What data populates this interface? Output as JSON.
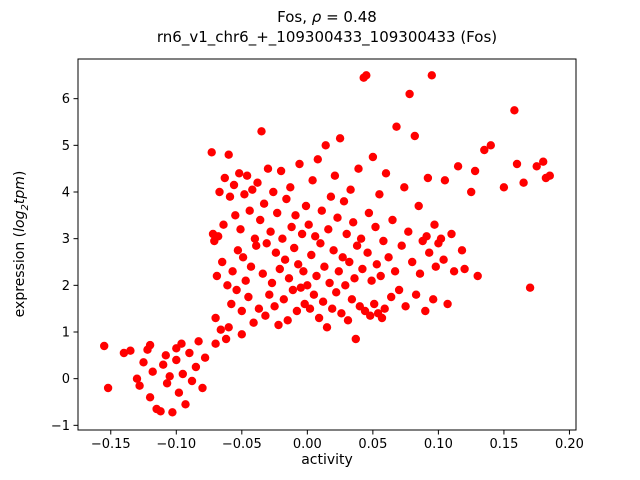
{
  "title": {
    "prefix": "Fos, ",
    "rho": "ρ",
    "suffix": " = 0.48"
  },
  "subtitle": "rn6_v1_chr6_+_109300433_109300433 (Fos)",
  "xlabel": "activity",
  "ylabel": {
    "prefix": "expression (",
    "math": "log",
    "sub": "2",
    "word": "tpm",
    "suffix": ")"
  },
  "chart_data": {
    "type": "scatter",
    "title": "Fos, ρ = 0.48",
    "subtitle": "rn6_v1_chr6_+_109300433_109300433 (Fos)",
    "xlabel": "activity",
    "ylabel": "expression (log2tpm)",
    "marker_color": "#ff0000",
    "marker_radius": 4.2,
    "xlim": [
      -0.175,
      0.205
    ],
    "ylim": [
      -1.1,
      6.85
    ],
    "grid": false,
    "x_ticks": [
      {
        "v": -0.15,
        "label": "−0.15"
      },
      {
        "v": -0.1,
        "label": "−0.10"
      },
      {
        "v": -0.05,
        "label": "−0.05"
      },
      {
        "v": 0.0,
        "label": "0.00"
      },
      {
        "v": 0.05,
        "label": "0.05"
      },
      {
        "v": 0.1,
        "label": "0.10"
      },
      {
        "v": 0.15,
        "label": "0.15"
      },
      {
        "v": 0.2,
        "label": "0.20"
      }
    ],
    "y_ticks": [
      {
        "v": -1,
        "label": "−1"
      },
      {
        "v": 0,
        "label": "0"
      },
      {
        "v": 1,
        "label": "1"
      },
      {
        "v": 2,
        "label": "2"
      },
      {
        "v": 3,
        "label": "3"
      },
      {
        "v": 4,
        "label": "4"
      },
      {
        "v": 5,
        "label": "5"
      },
      {
        "v": 6,
        "label": "6"
      }
    ],
    "points": [
      [
        -0.155,
        0.7
      ],
      [
        -0.152,
        -0.2
      ],
      [
        -0.14,
        0.55
      ],
      [
        -0.135,
        0.6
      ],
      [
        -0.13,
        0.0
      ],
      [
        -0.128,
        -0.15
      ],
      [
        -0.125,
        0.35
      ],
      [
        -0.122,
        0.62
      ],
      [
        -0.12,
        -0.4
      ],
      [
        -0.12,
        0.72
      ],
      [
        -0.118,
        0.15
      ],
      [
        -0.115,
        -0.65
      ],
      [
        -0.112,
        -0.7
      ],
      [
        -0.11,
        0.3
      ],
      [
        -0.108,
        0.5
      ],
      [
        -0.107,
        -0.1
      ],
      [
        -0.105,
        0.05
      ],
      [
        -0.103,
        -0.72
      ],
      [
        -0.1,
        0.4
      ],
      [
        -0.1,
        0.65
      ],
      [
        -0.098,
        -0.3
      ],
      [
        -0.096,
        0.75
      ],
      [
        -0.095,
        0.1
      ],
      [
        -0.093,
        -0.55
      ],
      [
        -0.09,
        0.55
      ],
      [
        -0.088,
        -0.05
      ],
      [
        -0.085,
        0.25
      ],
      [
        -0.083,
        0.8
      ],
      [
        -0.08,
        -0.2
      ],
      [
        -0.078,
        0.45
      ],
      [
        -0.073,
        4.85
      ],
      [
        -0.072,
        3.1
      ],
      [
        -0.071,
        2.95
      ],
      [
        -0.07,
        1.3
      ],
      [
        -0.07,
        0.75
      ],
      [
        -0.069,
        2.2
      ],
      [
        -0.068,
        3.05
      ],
      [
        -0.067,
        4.0
      ],
      [
        -0.066,
        1.05
      ],
      [
        -0.065,
        2.5
      ],
      [
        -0.064,
        3.3
      ],
      [
        -0.063,
        4.3
      ],
      [
        -0.062,
        0.85
      ],
      [
        -0.061,
        2.0
      ],
      [
        -0.06,
        4.8
      ],
      [
        -0.06,
        1.1
      ],
      [
        -0.059,
        3.9
      ],
      [
        -0.058,
        1.6
      ],
      [
        -0.057,
        2.3
      ],
      [
        -0.056,
        4.15
      ],
      [
        -0.055,
        3.5
      ],
      [
        -0.054,
        1.9
      ],
      [
        -0.053,
        2.75
      ],
      [
        -0.052,
        4.4
      ],
      [
        -0.051,
        3.2
      ],
      [
        -0.05,
        1.45
      ],
      [
        -0.05,
        0.95
      ],
      [
        -0.049,
        2.6
      ],
      [
        -0.048,
        3.95
      ],
      [
        -0.047,
        2.1
      ],
      [
        -0.046,
        4.35
      ],
      [
        -0.045,
        1.75
      ],
      [
        -0.044,
        3.6
      ],
      [
        -0.043,
        2.4
      ],
      [
        -0.042,
        4.05
      ],
      [
        -0.041,
        1.2
      ],
      [
        -0.04,
        3.0
      ],
      [
        -0.039,
        2.85
      ],
      [
        -0.038,
        4.2
      ],
      [
        -0.037,
        1.5
      ],
      [
        -0.036,
        3.4
      ],
      [
        -0.035,
        5.3
      ],
      [
        -0.034,
        2.25
      ],
      [
        -0.033,
        3.75
      ],
      [
        -0.032,
        1.35
      ],
      [
        -0.031,
        2.9
      ],
      [
        -0.03,
        4.5
      ],
      [
        -0.029,
        1.8
      ],
      [
        -0.028,
        3.15
      ],
      [
        -0.027,
        2.05
      ],
      [
        -0.026,
        4.0
      ],
      [
        -0.025,
        1.55
      ],
      [
        -0.024,
        2.7
      ],
      [
        -0.023,
        3.55
      ],
      [
        -0.022,
        1.15
      ],
      [
        -0.021,
        2.35
      ],
      [
        -0.02,
        4.45
      ],
      [
        -0.019,
        3.0
      ],
      [
        -0.018,
        1.7
      ],
      [
        -0.017,
        2.55
      ],
      [
        -0.016,
        3.85
      ],
      [
        -0.015,
        1.25
      ],
      [
        -0.014,
        2.15
      ],
      [
        -0.013,
        4.1
      ],
      [
        -0.012,
        3.25
      ],
      [
        -0.011,
        1.9
      ],
      [
        -0.01,
        2.8
      ],
      [
        -0.009,
        3.5
      ],
      [
        -0.008,
        1.45
      ],
      [
        -0.007,
        2.45
      ],
      [
        -0.006,
        4.6
      ],
      [
        -0.005,
        1.95
      ],
      [
        -0.004,
        3.1
      ],
      [
        -0.003,
        2.3
      ],
      [
        -0.002,
        1.6
      ],
      [
        -0.001,
        3.7
      ],
      [
        0.0,
        2.0
      ],
      [
        0.001,
        3.3
      ],
      [
        0.002,
        1.5
      ],
      [
        0.003,
        2.65
      ],
      [
        0.004,
        4.25
      ],
      [
        0.005,
        1.8
      ],
      [
        0.006,
        3.05
      ],
      [
        0.007,
        2.2
      ],
      [
        0.008,
        4.7
      ],
      [
        0.009,
        1.3
      ],
      [
        0.01,
        2.9
      ],
      [
        0.011,
        3.6
      ],
      [
        0.012,
        1.65
      ],
      [
        0.013,
        2.4
      ],
      [
        0.014,
        5.0
      ],
      [
        0.015,
        1.1
      ],
      [
        0.016,
        3.2
      ],
      [
        0.017,
        2.05
      ],
      [
        0.018,
        3.9
      ],
      [
        0.019,
        1.5
      ],
      [
        0.02,
        2.75
      ],
      [
        0.021,
        4.35
      ],
      [
        0.022,
        1.85
      ],
      [
        0.023,
        3.45
      ],
      [
        0.024,
        2.3
      ],
      [
        0.025,
        5.15
      ],
      [
        0.026,
        1.4
      ],
      [
        0.027,
        2.6
      ],
      [
        0.028,
        3.8
      ],
      [
        0.029,
        2.0
      ],
      [
        0.03,
        3.1
      ],
      [
        0.031,
        1.25
      ],
      [
        0.032,
        2.5
      ],
      [
        0.033,
        4.05
      ],
      [
        0.034,
        1.7
      ],
      [
        0.035,
        3.35
      ],
      [
        0.036,
        2.15
      ],
      [
        0.037,
        0.85
      ],
      [
        0.038,
        2.85
      ],
      [
        0.039,
        4.5
      ],
      [
        0.04,
        1.55
      ],
      [
        0.041,
        3.0
      ],
      [
        0.042,
        2.35
      ],
      [
        0.043,
        6.45
      ],
      [
        0.044,
        1.45
      ],
      [
        0.045,
        6.5
      ],
      [
        0.046,
        2.7
      ],
      [
        0.047,
        3.55
      ],
      [
        0.048,
        1.35
      ],
      [
        0.049,
        2.1
      ],
      [
        0.05,
        4.75
      ],
      [
        0.051,
        1.6
      ],
      [
        0.052,
        3.25
      ],
      [
        0.053,
        2.45
      ],
      [
        0.054,
        1.4
      ],
      [
        0.055,
        3.95
      ],
      [
        0.056,
        2.2
      ],
      [
        0.057,
        1.3
      ],
      [
        0.058,
        2.95
      ],
      [
        0.059,
        1.5
      ],
      [
        0.06,
        4.4
      ],
      [
        0.062,
        2.6
      ],
      [
        0.064,
        1.75
      ],
      [
        0.065,
        3.4
      ],
      [
        0.067,
        2.3
      ],
      [
        0.068,
        5.4
      ],
      [
        0.07,
        1.9
      ],
      [
        0.072,
        2.85
      ],
      [
        0.074,
        4.1
      ],
      [
        0.075,
        1.55
      ],
      [
        0.077,
        3.15
      ],
      [
        0.078,
        6.1
      ],
      [
        0.08,
        2.5
      ],
      [
        0.082,
        5.2
      ],
      [
        0.083,
        1.8
      ],
      [
        0.085,
        3.7
      ],
      [
        0.086,
        2.25
      ],
      [
        0.088,
        2.95
      ],
      [
        0.09,
        1.45
      ],
      [
        0.091,
        3.05
      ],
      [
        0.092,
        4.3
      ],
      [
        0.093,
        2.7
      ],
      [
        0.095,
        6.5
      ],
      [
        0.096,
        1.7
      ],
      [
        0.097,
        3.3
      ],
      [
        0.098,
        2.4
      ],
      [
        0.1,
        2.9
      ],
      [
        0.102,
        3.0
      ],
      [
        0.104,
        2.55
      ],
      [
        0.105,
        4.25
      ],
      [
        0.107,
        1.6
      ],
      [
        0.11,
        3.1
      ],
      [
        0.112,
        2.3
      ],
      [
        0.115,
        4.55
      ],
      [
        0.118,
        2.75
      ],
      [
        0.12,
        2.35
      ],
      [
        0.125,
        4.0
      ],
      [
        0.128,
        4.45
      ],
      [
        0.13,
        2.2
      ],
      [
        0.135,
        4.9
      ],
      [
        0.14,
        5.0
      ],
      [
        0.15,
        4.1
      ],
      [
        0.158,
        5.75
      ],
      [
        0.16,
        4.6
      ],
      [
        0.165,
        4.2
      ],
      [
        0.17,
        1.95
      ],
      [
        0.175,
        4.55
      ],
      [
        0.18,
        4.65
      ],
      [
        0.182,
        4.3
      ],
      [
        0.185,
        4.35
      ]
    ]
  }
}
